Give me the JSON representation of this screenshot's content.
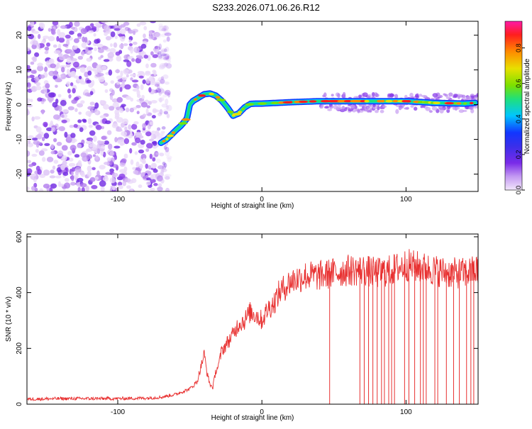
{
  "title": "S233.2026.071.06.26.R12",
  "chart_data": [
    {
      "type": "heatmap",
      "xlabel": "Height of straight line (km)",
      "ylabel": "Frequency (Hz)",
      "xlim": [
        -163,
        150
      ],
      "ylim": [
        -25,
        24
      ],
      "xticks": [
        -100,
        0,
        100
      ],
      "yticks": [
        -20,
        -10,
        0,
        10,
        20
      ],
      "grid": false,
      "colorbar": {
        "label": "Normalized spectral amplitude",
        "range": [
          0.0,
          0.95
        ],
        "ticks": [
          "0.0",
          "0.2",
          "0.4",
          "0.6",
          "0.8"
        ],
        "colors": [
          "#f2e6fb",
          "#c49af2",
          "#7a2be8",
          "#3a2fea",
          "#1236ff",
          "#00c6ff",
          "#20e07a",
          "#7ce000",
          "#e8e000",
          "#ff8a00",
          "#ff1e1e",
          "#ff1aa6"
        ]
      },
      "noise_region_x": [
        -163,
        -67
      ],
      "ridge": {
        "x": [
          -70,
          -66,
          -60,
          -56,
          -52,
          -50,
          -48,
          -44,
          -40,
          -36,
          -32,
          -28,
          -24,
          -20,
          -16,
          -12,
          -8,
          -4,
          0,
          10,
          20,
          40,
          60,
          80,
          100,
          120,
          140,
          148
        ],
        "y": [
          -11,
          -10,
          -7.5,
          -6,
          -4,
          0,
          1,
          2,
          3,
          3.2,
          2.6,
          1.2,
          -0.8,
          -3.2,
          -2.5,
          -0.8,
          0.2,
          0.3,
          0.3,
          0.5,
          0.7,
          1,
          1,
          1,
          1,
          0.5,
          0.3,
          0.5
        ]
      }
    },
    {
      "type": "line",
      "xlabel": "Height of straight line (km)",
      "ylabel": "SNR (10 * v/v)",
      "xlim": [
        -163,
        150
      ],
      "ylim": [
        0,
        610
      ],
      "xticks": [
        -100,
        0,
        100
      ],
      "yticks": [
        0,
        200,
        400,
        600
      ],
      "grid": false,
      "series": [
        {
          "color": "#e83030",
          "x": [
            -163,
            -140,
            -120,
            -100,
            -80,
            -70,
            -60,
            -50,
            -45,
            -40,
            -38,
            -36,
            -34,
            -32,
            -30,
            -28,
            -24,
            -20,
            -16,
            -12,
            -8,
            -4,
            0,
            4,
            8,
            12,
            16,
            20,
            30,
            40,
            50,
            60,
            70,
            80,
            90,
            100,
            110,
            120,
            130,
            140,
            150
          ],
          "y": [
            18,
            20,
            20,
            20,
            22,
            25,
            35,
            55,
            80,
            180,
            110,
            70,
            60,
            120,
            140,
            190,
            220,
            250,
            290,
            300,
            330,
            320,
            300,
            340,
            360,
            400,
            420,
            440,
            460,
            460,
            470,
            480,
            480,
            470,
            480,
            500,
            490,
            480,
            470,
            470,
            480
          ],
          "spikes_to_zero_x": [
            47,
            68,
            71,
            74,
            77,
            80,
            83,
            85,
            88,
            90,
            92,
            99,
            102,
            106,
            110,
            112,
            114,
            120,
            122,
            128,
            133,
            137,
            142,
            145,
            147
          ]
        }
      ]
    }
  ]
}
